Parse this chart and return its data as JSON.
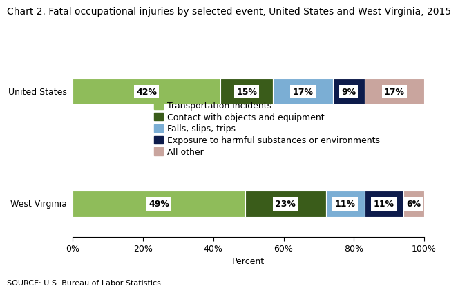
{
  "title": "Chart 2. Fatal occupational injuries by selected event, United States and West Virginia, 2015",
  "categories": [
    "United States",
    "West Virginia"
  ],
  "segments": [
    {
      "label": "Transportation incidents",
      "color": "#8fbc5a",
      "values": [
        42,
        49
      ]
    },
    {
      "label": "Contact with objects and equipment",
      "color": "#3a5c1a",
      "values": [
        15,
        23
      ]
    },
    {
      "label": "Falls, slips, trips",
      "color": "#7baed4",
      "values": [
        17,
        11
      ]
    },
    {
      "label": "Exposure to harmful substances or environments",
      "color": "#0d1b4b",
      "values": [
        9,
        11
      ]
    },
    {
      "label": "All other",
      "color": "#c9a59e",
      "values": [
        17,
        6
      ]
    }
  ],
  "xlabel": "Percent",
  "xlim": [
    0,
    100
  ],
  "xticks": [
    0,
    20,
    40,
    60,
    80,
    100
  ],
  "xticklabels": [
    "0%",
    "20%",
    "40%",
    "60%",
    "80%",
    "100%"
  ],
  "source": "SOURCE: U.S. Bureau of Labor Statistics.",
  "title_fontsize": 10,
  "tick_fontsize": 9,
  "legend_fontsize": 9,
  "pct_fontsize": 9,
  "bar_height": 0.55,
  "background_color": "#ffffff",
  "y_us": 3.0,
  "y_wv": 0.6,
  "ylim": [
    -0.1,
    4.2
  ]
}
